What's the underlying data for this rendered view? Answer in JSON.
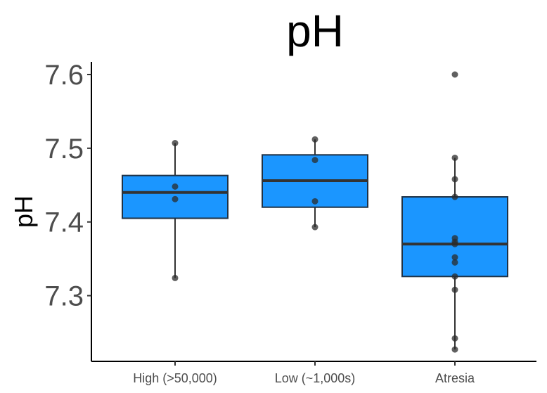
{
  "chart_data": {
    "type": "box",
    "title": "pH",
    "xlabel": "",
    "ylabel": "pH",
    "ylim": [
      7.2125,
      7.62
    ],
    "yticks": [
      7.3,
      7.4,
      7.5,
      7.6
    ],
    "ytick_labels": [
      "7.3",
      "7.4",
      "7.5",
      "7.6"
    ],
    "categories": [
      "High (>50,000)",
      "Low (~1,000s)",
      "Atresia"
    ],
    "grid": false,
    "legend": "none",
    "colors": {
      "box_fill": "#1b96ff",
      "box_stroke": "#1f3246",
      "point": "#2b2b2b"
    },
    "boxes": [
      {
        "category": "High (>50,000)",
        "q1": 7.405,
        "median": 7.44,
        "q3": 7.463,
        "whisker_low": 7.324,
        "whisker_high": 7.507,
        "points": [
          7.507,
          7.448,
          7.431,
          7.324
        ]
      },
      {
        "category": "Low (~1,000s)",
        "q1": 7.42,
        "median": 7.456,
        "q3": 7.491,
        "whisker_low": 7.393,
        "whisker_high": 7.512,
        "points": [
          7.512,
          7.484,
          7.428,
          7.393
        ]
      },
      {
        "category": "Atresia",
        "q1": 7.326,
        "median": 7.37,
        "q3": 7.434,
        "whisker_low": 7.227,
        "whisker_high": 7.487,
        "points": [
          7.6,
          7.487,
          7.458,
          7.434,
          7.378,
          7.373,
          7.37,
          7.352,
          7.345,
          7.326,
          7.308,
          7.242,
          7.227
        ]
      }
    ]
  }
}
